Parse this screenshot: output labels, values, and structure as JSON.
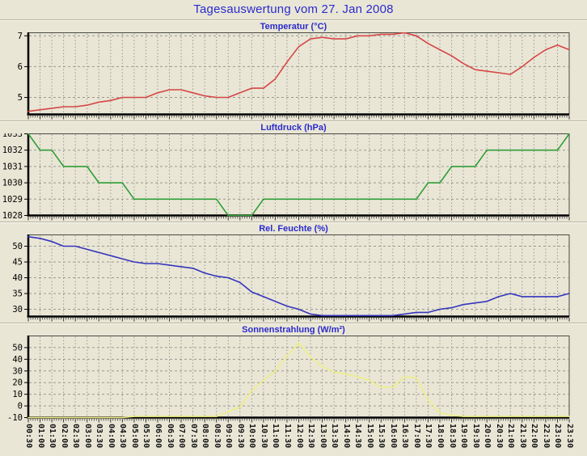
{
  "header": {
    "title": "Tagesauswertung vom 27. Jan 2008"
  },
  "colors": {
    "background": "#e9e6d6",
    "title_text": "#2b2bcc",
    "grid": "#999990",
    "axis": "#000000",
    "frame": "#4a4a44",
    "temperature_line": "#d64545",
    "pressure_line": "#2f9e36",
    "humidity_line": "#3535bd",
    "radiation_line": "#eeee85"
  },
  "chart_data": {
    "type": "line",
    "x_tick_interval": "30 min",
    "legend": "none",
    "grid": "dashed",
    "categories": [
      "00:30",
      "01:00",
      "01:30",
      "02:00",
      "02:30",
      "03:00",
      "03:30",
      "04:00",
      "04:30",
      "05:00",
      "05:30",
      "06:00",
      "06:30",
      "07:00",
      "07:30",
      "08:00",
      "08:30",
      "09:00",
      "09:30",
      "10:00",
      "10:30",
      "11:00",
      "11:30",
      "12:00",
      "12:30",
      "13:00",
      "13:30",
      "14:00",
      "14:30",
      "15:00",
      "15:30",
      "16:00",
      "16:30",
      "17:00",
      "17:30",
      "18:00",
      "18:30",
      "19:00",
      "19:30",
      "20:00",
      "20:30",
      "21:00",
      "21:30",
      "22:00",
      "22:30",
      "23:00",
      "23:30"
    ],
    "panels": [
      {
        "title": "Temperatur (°C)",
        "color": "#d64545",
        "y_ticks": [
          5,
          6,
          7
        ],
        "y_range": [
          4.45,
          7.1
        ],
        "values": [
          4.55,
          4.6,
          4.65,
          4.7,
          4.7,
          4.75,
          4.85,
          4.9,
          5.0,
          5.0,
          5.0,
          5.15,
          5.25,
          5.25,
          5.15,
          5.05,
          5.0,
          5.0,
          5.15,
          5.3,
          5.3,
          5.6,
          6.15,
          6.65,
          6.9,
          6.95,
          6.9,
          6.9,
          7.0,
          7.0,
          7.05,
          7.05,
          7.1,
          7.0,
          6.75,
          6.55,
          6.35,
          6.1,
          5.9,
          5.85,
          5.8,
          5.75,
          6.0,
          6.3,
          6.55,
          6.7,
          6.55
        ]
      },
      {
        "title": "Luftdruck (hPa)",
        "color": "#2f9e36",
        "y_ticks": [
          1028,
          1029,
          1030,
          1031,
          1032,
          1033
        ],
        "y_range": [
          1028,
          1033
        ],
        "values": [
          1033,
          1032,
          1032,
          1031,
          1031,
          1031,
          1030,
          1030,
          1030,
          1029,
          1029,
          1029,
          1029,
          1029,
          1029,
          1029,
          1029,
          1028,
          1028,
          1028,
          1029,
          1029,
          1029,
          1029,
          1029,
          1029,
          1029,
          1029,
          1029,
          1029,
          1029,
          1029,
          1029,
          1029,
          1030,
          1030,
          1031,
          1031,
          1031,
          1032,
          1032,
          1032,
          1032,
          1032,
          1032,
          1032,
          1033
        ]
      },
      {
        "title": "Rel. Feuchte (%)",
        "color": "#3535bd",
        "y_ticks": [
          30,
          35,
          40,
          45,
          50
        ],
        "y_range": [
          27.7,
          53.6
        ],
        "values": [
          53,
          52.5,
          51.5,
          50,
          50,
          49,
          48,
          47,
          46,
          45,
          44.5,
          44.5,
          44,
          43.5,
          43,
          41.5,
          40.5,
          40,
          38.5,
          35.5,
          34,
          32.5,
          31,
          30,
          28.5,
          28,
          28,
          28,
          28,
          28,
          28,
          28,
          28.5,
          29,
          29,
          30,
          30.5,
          31.5,
          32,
          32.5,
          34,
          35,
          34,
          34,
          34,
          34,
          35
        ]
      },
      {
        "title": "Sonnenstrahlung (W/m²)",
        "color": "#eeee85",
        "y_ticks": [
          -10,
          0,
          10,
          20,
          30,
          40,
          50
        ],
        "y_range": [
          -10,
          60
        ],
        "values": [
          -10,
          -10,
          -10,
          -10,
          -10,
          -10,
          -10,
          -10,
          -10,
          -9,
          -9,
          -9,
          -9,
          -9,
          -9,
          -9,
          -9,
          -5,
          -1,
          13,
          22,
          30,
          43,
          54,
          42,
          34,
          29,
          27.5,
          25,
          22,
          16,
          16,
          25,
          24,
          5,
          -6,
          -8,
          -9,
          -9,
          -9,
          -9,
          -9,
          -9,
          -9,
          -9,
          -9,
          -9
        ]
      }
    ]
  }
}
